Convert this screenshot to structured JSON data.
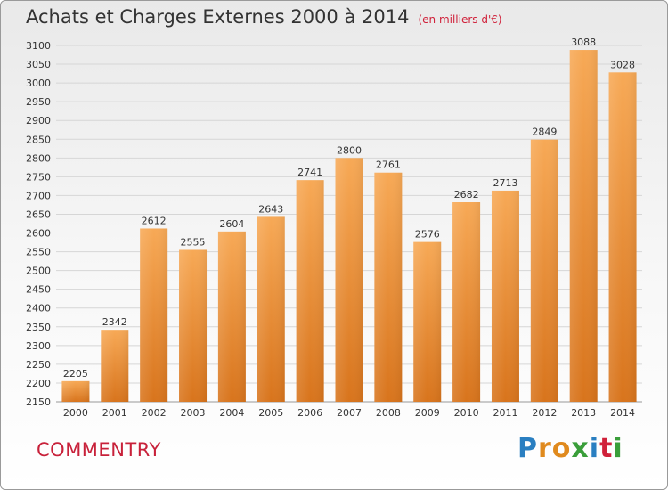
{
  "title": "Achats et Charges Externes 2000 à 2014",
  "unit": "(en milliers d'€)",
  "commune": "COMMENTRY",
  "logo": {
    "text": "Proxiti",
    "letters": [
      "P",
      "r",
      "o",
      "x",
      "i",
      "t",
      "i"
    ],
    "colors": [
      "#2a7fc1",
      "#e08a1e",
      "#e08a1e",
      "#3a9e3a",
      "#2a7fc1",
      "#d0213a",
      "#3a9e3a"
    ]
  },
  "colors": {
    "bar_light": "#f6a653",
    "bar_dark": "#d9781f",
    "grid": "#d6d6d6",
    "axis_text": "#333333"
  },
  "chart_data": {
    "type": "bar",
    "title": "Achats et Charges Externes 2000 à 2014",
    "categories": [
      "2000",
      "2001",
      "2002",
      "2003",
      "2004",
      "2005",
      "2006",
      "2007",
      "2008",
      "2009",
      "2010",
      "2011",
      "2012",
      "2013",
      "2014"
    ],
    "values": [
      2205,
      2342,
      2612,
      2555,
      2604,
      2643,
      2741,
      2800,
      2761,
      2576,
      2682,
      2713,
      2849,
      3088,
      3028
    ],
    "ylim": [
      2150,
      3100
    ],
    "yticks": [
      2150,
      2200,
      2250,
      2300,
      2350,
      2400,
      2450,
      2500,
      2550,
      2600,
      2650,
      2700,
      2750,
      2800,
      2850,
      2900,
      2950,
      3000,
      3050,
      3100
    ],
    "grid": true,
    "xlabel": "",
    "ylabel": ""
  }
}
